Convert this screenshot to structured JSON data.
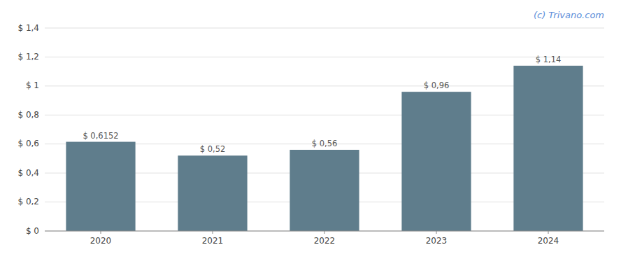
{
  "chart_data": {
    "type": "bar",
    "annotations": [
      "(c) Trivano.com"
    ],
    "categories": [
      "2020",
      "2021",
      "2022",
      "2023",
      "2024"
    ],
    "values": [
      0.6152,
      0.52,
      0.56,
      0.96,
      1.14
    ],
    "value_labels": [
      "$ 0,6152",
      "$ 0,52",
      "$ 0,56",
      "$ 0,96",
      "$ 1,14"
    ],
    "data_labels": true,
    "color": "#5f7d8c",
    "ylim": [
      0,
      1.4
    ],
    "yticks": [
      {
        "value": 0,
        "label": "$ 0"
      },
      {
        "value": 0.2,
        "label": "$ 0,2"
      },
      {
        "value": 0.4,
        "label": "$ 0,4"
      },
      {
        "value": 0.6,
        "label": "$ 0,6"
      },
      {
        "value": 0.8,
        "label": "$ 0,8"
      },
      {
        "value": 1.0,
        "label": "$ 1"
      },
      {
        "value": 1.2,
        "label": "$ 1,2"
      },
      {
        "value": 1.4,
        "label": "$ 1,4"
      }
    ],
    "grid": true
  }
}
